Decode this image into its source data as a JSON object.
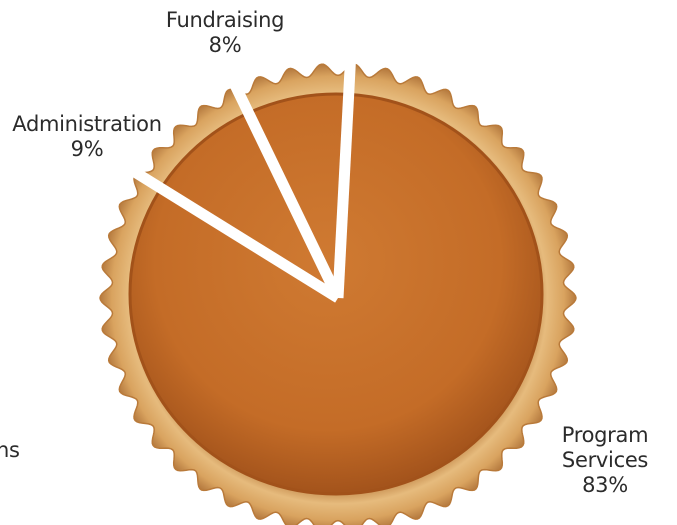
{
  "chart_data": {
    "type": "pie",
    "title": "",
    "slices": [
      {
        "label": "Program Services",
        "label_lines": [
          "Program",
          "Services"
        ],
        "value": 83,
        "value_label": "83%"
      },
      {
        "label": "Administration",
        "label_lines": [
          "Administration"
        ],
        "value": 9,
        "value_label": "9%"
      },
      {
        "label": "Fundraising",
        "label_lines": [
          "Fundraising"
        ],
        "value": 8,
        "value_label": "8%"
      }
    ],
    "edge_fragment": "ns",
    "legend": "none"
  },
  "colors": {
    "crust": "#d9a35f",
    "crust_light": "#efc98c",
    "crust_dark": "#b97a3a",
    "filling": "#c8702a",
    "filling_dark": "#a2521a",
    "divider": "#ffffff"
  }
}
